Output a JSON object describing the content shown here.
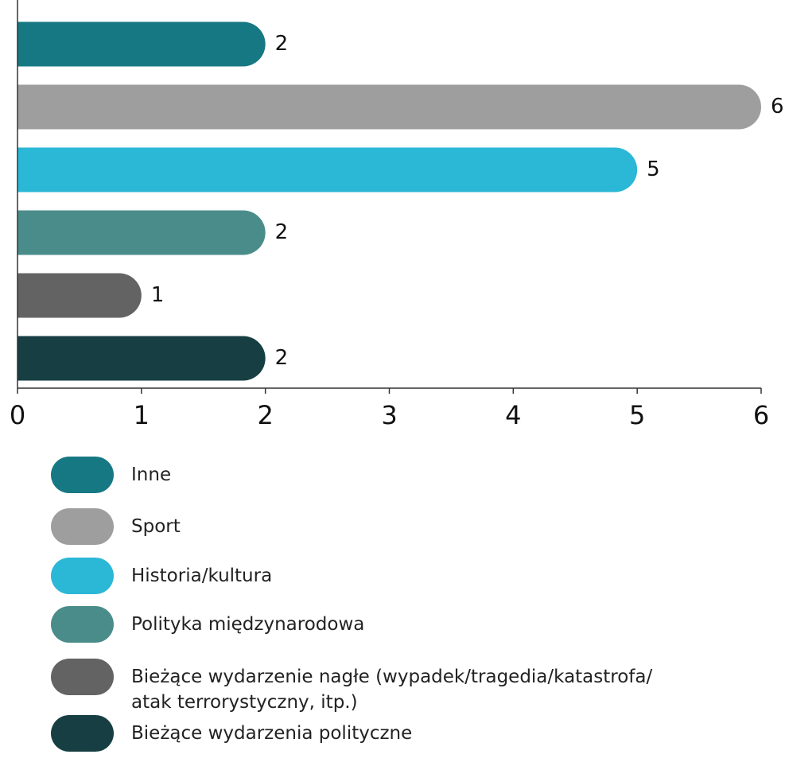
{
  "chart_data": {
    "type": "bar",
    "orientation": "horizontal",
    "categories": [
      "Inne",
      "Sport",
      "Historia/kultura",
      "Polityka międzynarodowa",
      "Bieżące wydarzenie nagłe (wypadek/tragedia/katastrofa/atak terrorystyczny, itp.)",
      "Bieżące wydarzenia polityczne"
    ],
    "values": [
      2,
      6,
      5,
      2,
      1,
      2
    ],
    "colors": [
      "#167883",
      "#9e9e9e",
      "#2bb7d6",
      "#4a8c8a",
      "#636363",
      "#173f43"
    ],
    "xlim": [
      0,
      6
    ],
    "xticks": [
      0,
      1,
      2,
      3,
      4,
      5,
      6
    ],
    "legend": "bottom"
  }
}
